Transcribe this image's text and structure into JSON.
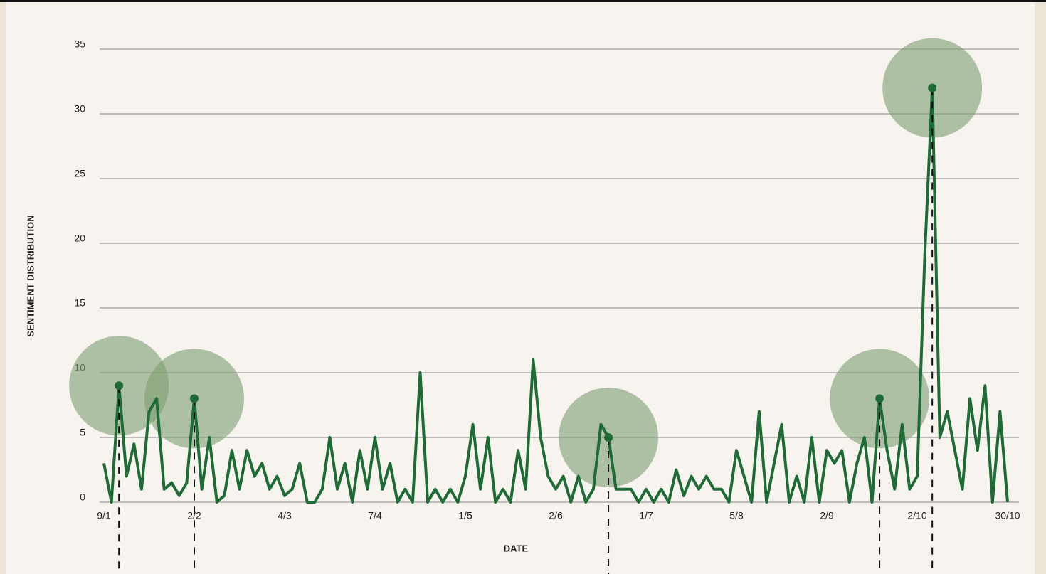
{
  "chart_data": {
    "type": "line",
    "ylabel": "SENTIMENT DISTRIBUTION",
    "xlabel": "DATE",
    "categories": [
      "9/1",
      null,
      null,
      null,
      null,
      null,
      null,
      null,
      null,
      null,
      null,
      null,
      "2/2",
      null,
      null,
      null,
      null,
      null,
      null,
      null,
      null,
      null,
      null,
      null,
      "4/3",
      null,
      null,
      null,
      null,
      null,
      null,
      null,
      null,
      null,
      null,
      null,
      "7/4",
      null,
      null,
      null,
      null,
      null,
      null,
      null,
      null,
      null,
      null,
      null,
      "1/5",
      null,
      null,
      null,
      null,
      null,
      null,
      null,
      null,
      null,
      null,
      null,
      "2/6",
      null,
      null,
      null,
      null,
      null,
      null,
      null,
      null,
      null,
      null,
      null,
      "1/7",
      null,
      null,
      null,
      null,
      null,
      null,
      null,
      null,
      null,
      null,
      null,
      "5/8",
      null,
      null,
      null,
      null,
      null,
      null,
      null,
      null,
      null,
      null,
      null,
      "2/9",
      null,
      null,
      null,
      null,
      null,
      null,
      null,
      null,
      null,
      null,
      null,
      "2/10",
      null,
      null,
      null,
      null,
      null,
      null,
      null,
      null,
      null,
      null,
      null,
      "30/10"
    ],
    "values": [
      3,
      0,
      9,
      2,
      4.5,
      1,
      7,
      8,
      1,
      1.5,
      0.5,
      1.5,
      8,
      1,
      5,
      0,
      0.5,
      4,
      1,
      4,
      2,
      3,
      1,
      2,
      0.5,
      1,
      3,
      0,
      0,
      1,
      5,
      1,
      3,
      0,
      4,
      1,
      5,
      1,
      3,
      0,
      1,
      0,
      10,
      0,
      1,
      0,
      1,
      0,
      2,
      6,
      1,
      5,
      0,
      1,
      0,
      4,
      1,
      11,
      5,
      2,
      1,
      2,
      0,
      2,
      0,
      1,
      6,
      5,
      1,
      1,
      1,
      0,
      1,
      0,
      1,
      0,
      2.5,
      0.5,
      2,
      1,
      2,
      1,
      1,
      0,
      4,
      2,
      0,
      7,
      0,
      3,
      6,
      0,
      2,
      0,
      5,
      0,
      4,
      3,
      4,
      0,
      3,
      5,
      0,
      8,
      4,
      1,
      6,
      1,
      2,
      19,
      32,
      5,
      7,
      4,
      1,
      8,
      4,
      9,
      0,
      7,
      0
    ],
    "color": "#1e6b35",
    "highlights": [
      2,
      12,
      67,
      103,
      110
    ],
    "highlight_color": "#7d9c6f",
    "ylim": [
      0,
      35
    ],
    "yticks": [
      0,
      5,
      10,
      15,
      20,
      25,
      30,
      35
    ],
    "grid": true
  }
}
